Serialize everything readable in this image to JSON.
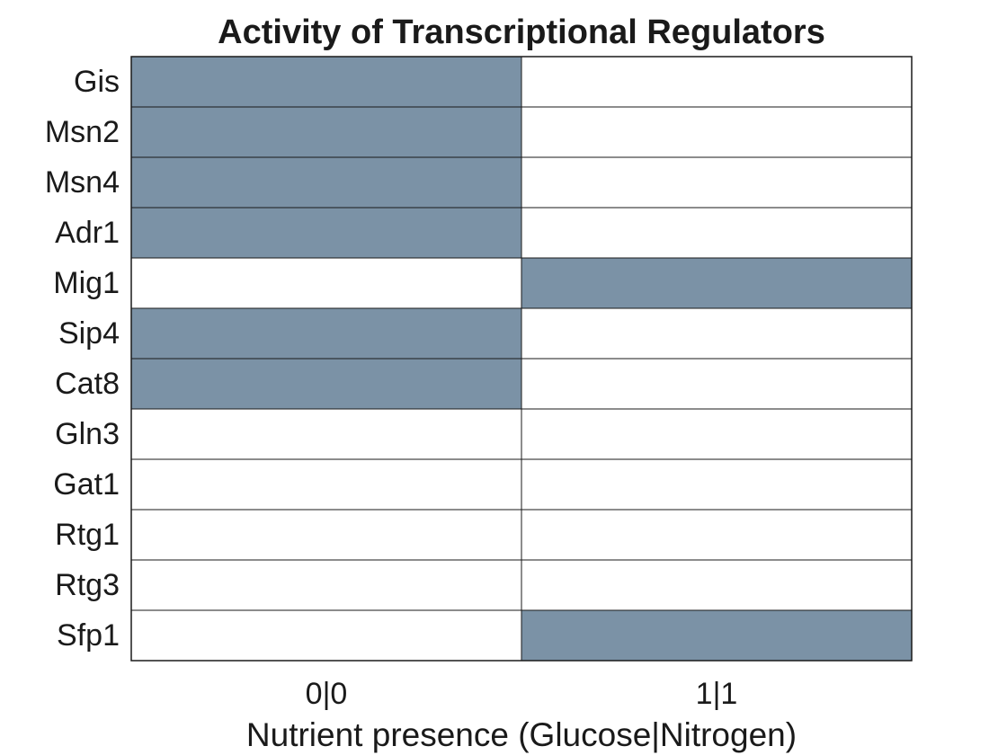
{
  "chart_data": {
    "type": "heatmap",
    "title": "Activity of Transcriptional Regulators",
    "xlabel": "Nutrient presence (Glucose|Nitrogen)",
    "ylabel": "",
    "x_categories": [
      "0|0",
      "1|1"
    ],
    "y_categories": [
      "Gis",
      "Msn2",
      "Msn4",
      "Adr1",
      "Mig1",
      "Sip4",
      "Cat8",
      "Gln3",
      "Gat1",
      "Rtg1",
      "Rtg3",
      "Sfp1"
    ],
    "values": [
      [
        1,
        0
      ],
      [
        1,
        0
      ],
      [
        1,
        0
      ],
      [
        1,
        0
      ],
      [
        0,
        1
      ],
      [
        1,
        0
      ],
      [
        1,
        0
      ],
      [
        0,
        0
      ],
      [
        0,
        0
      ],
      [
        0,
        0
      ],
      [
        0,
        0
      ],
      [
        0,
        1
      ]
    ],
    "colors": {
      "active": "#7b92a6",
      "inactive": "#ffffff",
      "grid": "#1a1a1a"
    },
    "grid": true,
    "legend": "none"
  }
}
